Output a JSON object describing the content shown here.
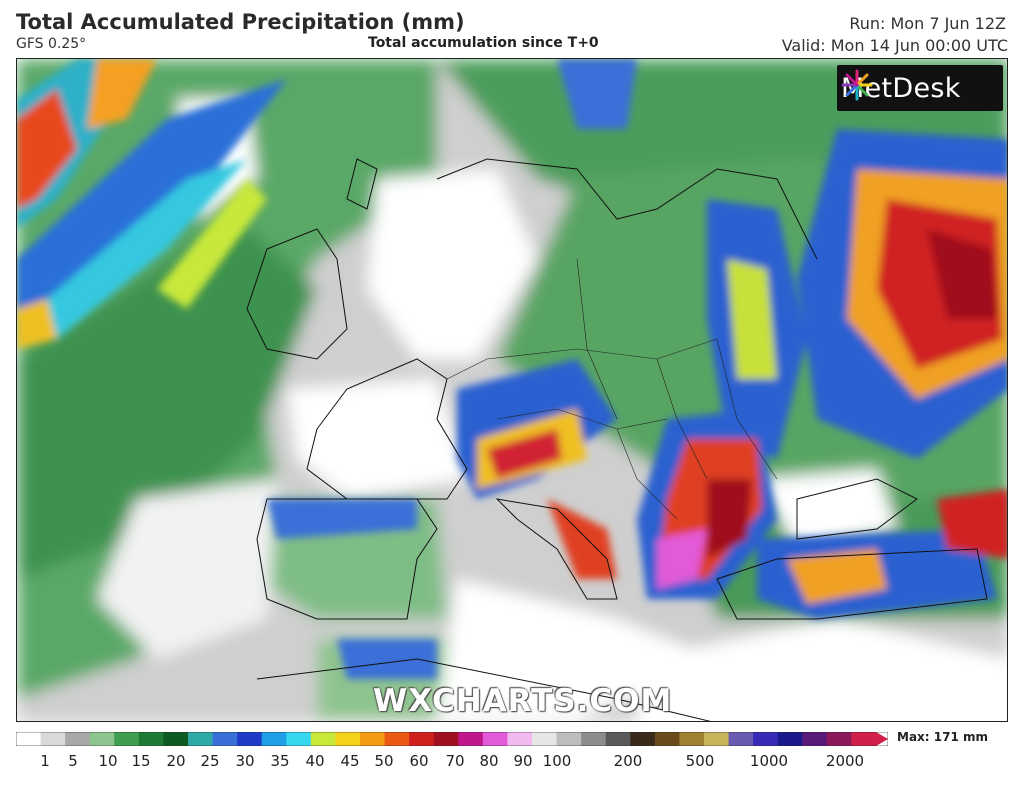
{
  "header": {
    "title": "Total Accumulated Precipitation (mm)",
    "model": "GFS 0.25°",
    "subtitle": "Total accumulation since T+0",
    "run": "Run: Mon 7 Jun 12Z",
    "valid": "Valid: Mon 14 Jun 00:00 UTC"
  },
  "map": {
    "logo_text": "MetDesk",
    "watermark": "WXCHARTS.COM"
  },
  "legend": {
    "max_label": "Max: 171 mm",
    "ticks": [
      "1",
      "5",
      "10",
      "15",
      "20",
      "25",
      "30",
      "35",
      "40",
      "45",
      "50",
      "60",
      "70",
      "80",
      "90",
      "100",
      "200",
      "500",
      "1000",
      "2000"
    ],
    "colors": [
      "#ffffff",
      "#d9d9d9",
      "#a8a8a8",
      "#8ec48e",
      "#3f9e4f",
      "#1f7a33",
      "#0e5a23",
      "#2fa8a8",
      "#3a6fd8",
      "#1e3cc8",
      "#1f9fe8",
      "#37d8ef",
      "#c8e83a",
      "#f5d21a",
      "#f59a14",
      "#ea5a14",
      "#d0201e",
      "#a0101e",
      "#c0188c",
      "#e25ad8",
      "#f2b8f0",
      "#e6e6e6",
      "#bdbdbd",
      "#8c8c8c",
      "#5a5a5a",
      "#3a2a1a",
      "#6b4a1e",
      "#a08032",
      "#c8b45a",
      "#6a5ab0",
      "#3a2ab8",
      "#1a1a8c",
      "#5a1a7a",
      "#8c1a5a",
      "#d0204a"
    ],
    "icons": {
      "logo": "metdesk-star-icon",
      "arrow": "legend-arrow-icon"
    }
  }
}
